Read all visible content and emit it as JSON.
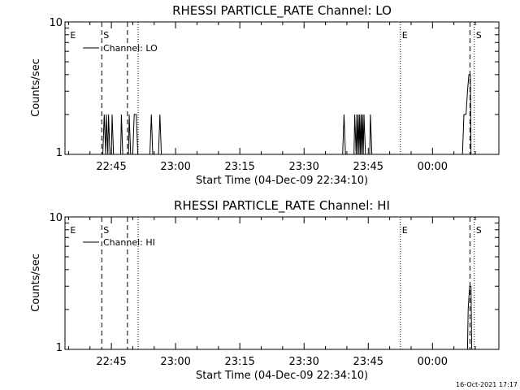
{
  "chart_data": [
    {
      "type": "line",
      "title": "RHESSI PARTICLE_RATE Channel: LO",
      "xlabel": "Start Time (04-Dec-09 22:34:10)",
      "ylabel": "Counts/sec",
      "xlim": [
        "22:34:10",
        "00:15:30"
      ],
      "ylim": [
        1,
        10
      ],
      "y_scale": "log",
      "y_ticks": [
        "1",
        "10"
      ],
      "x_ticks": [
        "22:45",
        "23:00",
        "23:15",
        "23:30",
        "23:45",
        "00:00"
      ],
      "legend": {
        "label": "Channel: LO",
        "placement": "top-left"
      },
      "series": [
        {
          "name": "Channel: LO",
          "points": [
            [
              "22:34:10",
              1
            ],
            [
              "22:43:00",
              1
            ],
            [
              "22:43:20",
              2
            ],
            [
              "22:43:40",
              1
            ],
            [
              "22:43:50",
              2
            ],
            [
              "22:44:10",
              1
            ],
            [
              "22:44:20",
              2
            ],
            [
              "22:44:40",
              1
            ],
            [
              "22:45:00",
              1
            ],
            [
              "22:45:10",
              2
            ],
            [
              "22:45:30",
              1
            ],
            [
              "22:47:10",
              1
            ],
            [
              "22:47:20",
              2
            ],
            [
              "22:47:40",
              1
            ],
            [
              "22:49:00",
              1
            ],
            [
              "22:49:10",
              2
            ],
            [
              "22:49:30",
              1
            ],
            [
              "22:50:00",
              1
            ],
            [
              "22:50:20",
              2
            ],
            [
              "22:50:50",
              2
            ],
            [
              "22:51:10",
              1
            ],
            [
              "22:54:00",
              1
            ],
            [
              "22:54:20",
              2
            ],
            [
              "22:54:40",
              1
            ],
            [
              "22:56:00",
              1
            ],
            [
              "22:56:20",
              2
            ],
            [
              "22:56:40",
              1
            ],
            [
              "23:39:00",
              1
            ],
            [
              "23:39:20",
              2
            ],
            [
              "23:39:40",
              1
            ],
            [
              "23:41:40",
              1
            ],
            [
              "23:41:50",
              2
            ],
            [
              "23:42:10",
              1
            ],
            [
              "23:42:20",
              2
            ],
            [
              "23:42:30",
              1
            ],
            [
              "23:42:40",
              2
            ],
            [
              "23:42:50",
              1
            ],
            [
              "23:43:00",
              2
            ],
            [
              "23:43:10",
              1
            ],
            [
              "23:43:20",
              2
            ],
            [
              "23:43:30",
              1
            ],
            [
              "23:43:40",
              2
            ],
            [
              "23:43:50",
              1
            ],
            [
              "23:44:00",
              2
            ],
            [
              "23:44:20",
              1
            ],
            [
              "23:45:20",
              1
            ],
            [
              "23:45:30",
              2
            ],
            [
              "23:45:50",
              1
            ],
            [
              "00:07:00",
              1
            ],
            [
              "00:07:20",
              2
            ],
            [
              "00:07:50",
              2
            ],
            [
              "00:08:10",
              3
            ],
            [
              "00:08:30",
              4
            ],
            [
              "00:08:50",
              4
            ],
            [
              "00:09:00",
              1
            ],
            [
              "00:15:30",
              1
            ]
          ]
        }
      ],
      "annotations": [
        {
          "time": "22:35:00",
          "label": "E",
          "style": "none"
        },
        {
          "time": "22:42:45",
          "label": "S",
          "style": "dashed"
        },
        {
          "time": "22:48:45",
          "label": "",
          "style": "dashed"
        },
        {
          "time": "22:51:15",
          "label": "",
          "style": "dotted"
        },
        {
          "time": "23:52:30",
          "label": "E",
          "style": "dotted"
        },
        {
          "time": "00:08:45",
          "label": "",
          "style": "dashed"
        },
        {
          "time": "00:09:45",
          "label": "S",
          "style": "dotted"
        }
      ]
    },
    {
      "type": "line",
      "title": "RHESSI PARTICLE_RATE Channel: HI",
      "xlabel": "Start Time (04-Dec-09 22:34:10)",
      "ylabel": "Counts/sec",
      "xlim": [
        "22:34:10",
        "00:15:30"
      ],
      "ylim": [
        1,
        10
      ],
      "y_scale": "log",
      "y_ticks": [
        "1",
        "10"
      ],
      "x_ticks": [
        "22:45",
        "23:00",
        "23:15",
        "23:30",
        "23:45",
        "00:00"
      ],
      "legend": {
        "label": "Channel: HI",
        "placement": "top-left"
      },
      "series": [
        {
          "name": "Channel: HI",
          "points": [
            [
              "22:34:10",
              1
            ],
            [
              "00:08:10",
              1
            ],
            [
              "00:08:20",
              2
            ],
            [
              "00:08:40",
              3
            ],
            [
              "00:09:00",
              3
            ],
            [
              "00:09:10",
              1
            ],
            [
              "00:15:30",
              1
            ]
          ]
        }
      ],
      "annotations": [
        {
          "time": "22:35:00",
          "label": "E",
          "style": "none"
        },
        {
          "time": "22:42:45",
          "label": "S",
          "style": "dashed"
        },
        {
          "time": "22:48:45",
          "label": "",
          "style": "dashed"
        },
        {
          "time": "22:51:15",
          "label": "",
          "style": "dotted"
        },
        {
          "time": "23:52:30",
          "label": "E",
          "style": "dotted"
        },
        {
          "time": "00:08:45",
          "label": "",
          "style": "dashed"
        },
        {
          "time": "00:09:45",
          "label": "S",
          "style": "dotted"
        }
      ]
    }
  ],
  "footer": {
    "timestamp": "16-Oct-2021 17:17"
  }
}
